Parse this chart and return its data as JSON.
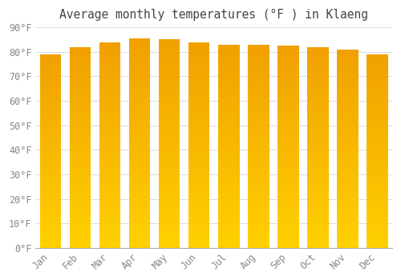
{
  "title": "Average monthly temperatures (°F ) in Klaeng",
  "months": [
    "Jan",
    "Feb",
    "Mar",
    "Apr",
    "May",
    "Jun",
    "Jul",
    "Aug",
    "Sep",
    "Oct",
    "Nov",
    "Dec"
  ],
  "values": [
    79,
    82,
    84,
    85.5,
    85,
    84,
    83,
    83,
    82.5,
    82,
    81,
    79
  ],
  "ylim": [
    0,
    90
  ],
  "yticks": [
    0,
    10,
    20,
    30,
    40,
    50,
    60,
    70,
    80,
    90
  ],
  "ytick_labels": [
    "0°F",
    "10°F",
    "20°F",
    "30°F",
    "40°F",
    "50°F",
    "60°F",
    "70°F",
    "80°F",
    "90°F"
  ],
  "bar_color_top": "#F0A000",
  "bar_color_bottom": "#FFD000",
  "background_color": "#FFFFFF",
  "plot_bg_color": "#FFFFFF",
  "grid_color": "#DDDDDD",
  "title_color": "#444444",
  "tick_color": "#888888",
  "title_fontsize": 10.5,
  "tick_fontsize": 8.5,
  "bar_width": 0.72
}
